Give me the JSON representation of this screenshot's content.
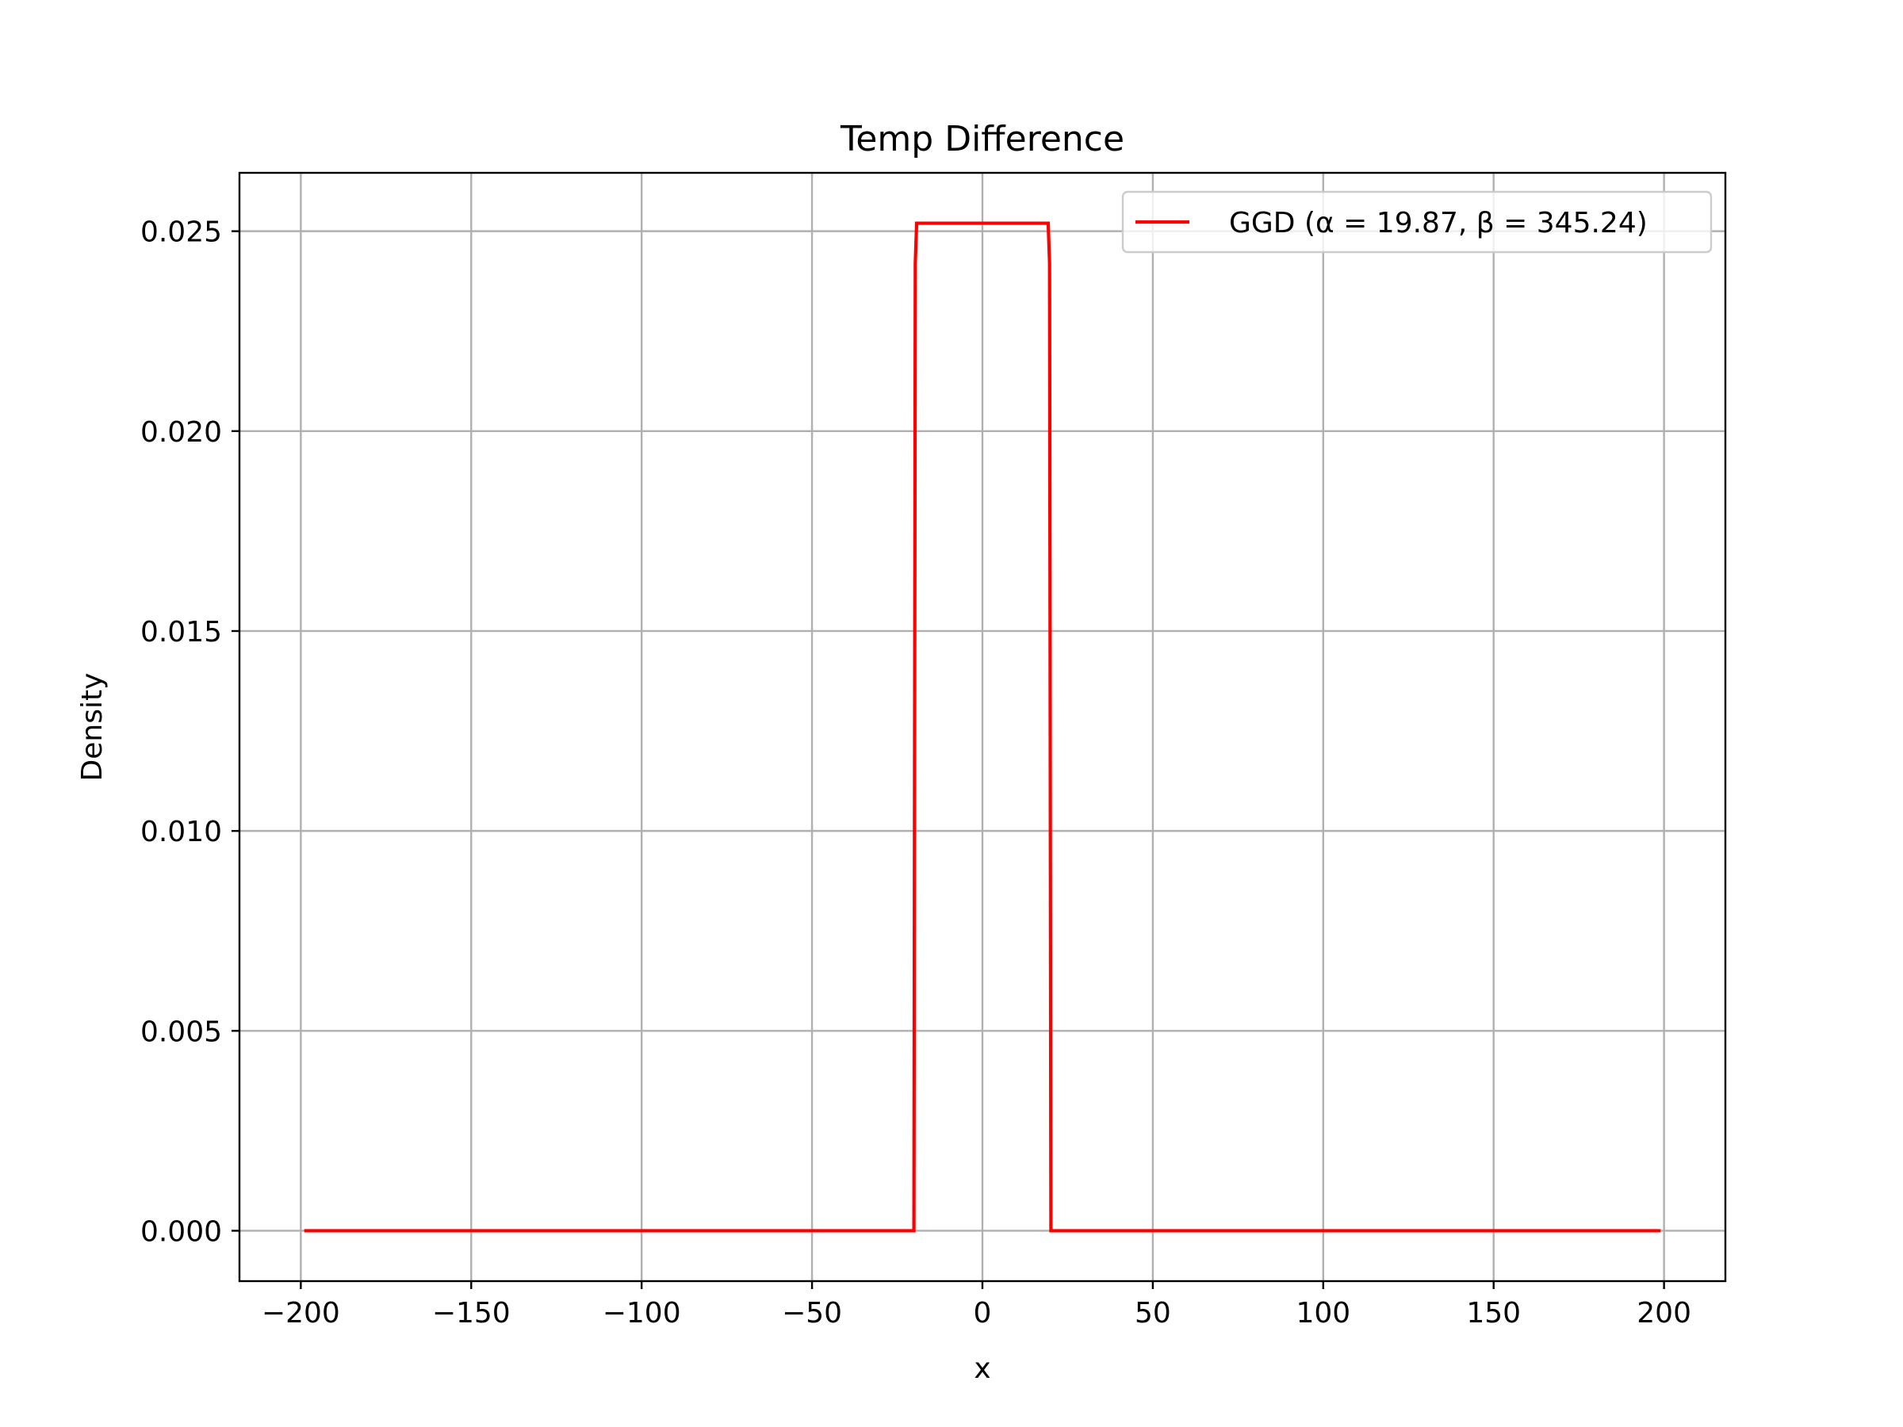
{
  "chart_data": {
    "type": "line",
    "title": "Temp Difference",
    "xlabel": "x",
    "ylabel": "Density",
    "xlim": [
      -218,
      218
    ],
    "ylim": [
      -0.00126,
      0.02646
    ],
    "xticks": [
      -200,
      -150,
      -100,
      -50,
      0,
      50,
      100,
      150,
      200
    ],
    "xtick_labels": [
      "−200",
      "−150",
      "−100",
      "−50",
      "0",
      "50",
      "100",
      "150",
      "200"
    ],
    "yticks": [
      0.0,
      0.005,
      0.01,
      0.015,
      0.02,
      0.025
    ],
    "ytick_labels": [
      "0.000",
      "0.005",
      "0.010",
      "0.015",
      "0.020",
      "0.025"
    ],
    "grid": true,
    "legend_position": "top-right",
    "series": [
      {
        "name": "GGD (α = 19.87, β = 345.24)",
        "color": "#ff0000",
        "x": [
          -199,
          -20.1,
          -19.7,
          -19.3,
          19.3,
          19.7,
          20.1,
          199
        ],
        "y": [
          0.0,
          0.0,
          0.0242,
          0.0252,
          0.0252,
          0.0242,
          0.0,
          0.0
        ]
      }
    ]
  },
  "colors": {
    "grid": "#b0b0b0",
    "axes": "#000000",
    "background": "#ffffff"
  }
}
